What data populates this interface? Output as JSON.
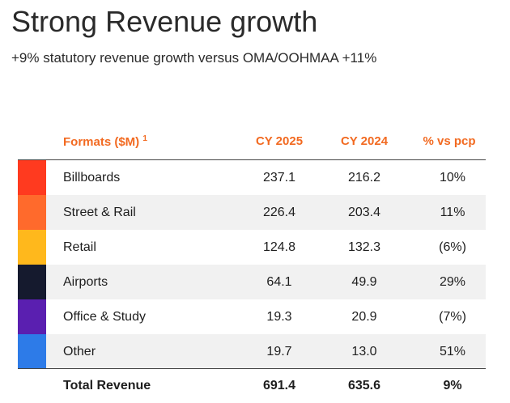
{
  "header": {
    "title": "Strong Revenue growth",
    "subtitle": "+9% statutory revenue growth versus OMA/OOHMAA +11%"
  },
  "table": {
    "columns": [
      "Formats ($M)",
      "CY 2025",
      "CY 2024",
      "% vs pcp"
    ],
    "footnote_mark": "1",
    "rows": [
      [
        "Billboards",
        "237.1",
        "216.2",
        "10%"
      ],
      [
        "Street & Rail",
        "226.4",
        "203.4",
        "11%"
      ],
      [
        "Retail",
        "124.8",
        "132.3",
        "(6%)"
      ],
      [
        "Airports",
        "64.1",
        "49.9",
        "29%"
      ],
      [
        "Office & Study",
        "19.3",
        "20.9",
        "(7%)"
      ],
      [
        "Other",
        "19.7",
        "13.0",
        "51%"
      ]
    ],
    "total": [
      "Total Revenue",
      "691.4",
      "635.6",
      "9%"
    ]
  }
}
